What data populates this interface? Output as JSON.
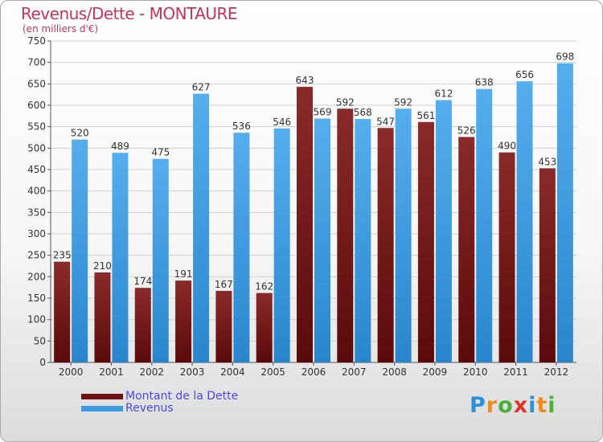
{
  "header": {
    "title": "Revenus/Dette - MONTAURE",
    "subtitle": "(en milliers d'€)"
  },
  "logo": {
    "letters": [
      "P",
      "r",
      "o",
      "x",
      "i",
      "t",
      "i"
    ],
    "colors": [
      "#2f8fd6",
      "#f08c1e",
      "#4cae3c",
      "#e0352b",
      "#2f8fd6",
      "#f08c1e",
      "#4cae3c"
    ]
  },
  "colors": {
    "dette": "#7a1a1a",
    "revenus": "#3d9ce3",
    "axis_text": "#333333",
    "grid": "#d0d0d0",
    "title": "#c0365a",
    "legend_text": "#4a4adf"
  },
  "chart_data": {
    "type": "bar",
    "title": "Revenus/Dette - MONTAURE",
    "subtitle": "(en milliers d'€)",
    "xlabel": "",
    "ylabel": "",
    "ylim": [
      0,
      750
    ],
    "yticks": [
      0,
      50,
      100,
      150,
      200,
      250,
      300,
      350,
      400,
      450,
      500,
      550,
      600,
      650,
      700,
      750
    ],
    "grid": true,
    "legend_position": "bottom-left",
    "categories": [
      "2000",
      "2001",
      "2002",
      "2003",
      "2004",
      "2005",
      "2006",
      "2007",
      "2008",
      "2009",
      "2010",
      "2011",
      "2012"
    ],
    "series": [
      {
        "name": "Montant de la Dette",
        "color": "#7a1a1a",
        "values": [
          235,
          210,
          174,
          191,
          167,
          162,
          643,
          592,
          547,
          561,
          526,
          490,
          453
        ]
      },
      {
        "name": "Revenus",
        "color": "#3d9ce3",
        "values": [
          520,
          489,
          475,
          627,
          536,
          546,
          569,
          568,
          592,
          612,
          638,
          656,
          698
        ]
      }
    ]
  }
}
